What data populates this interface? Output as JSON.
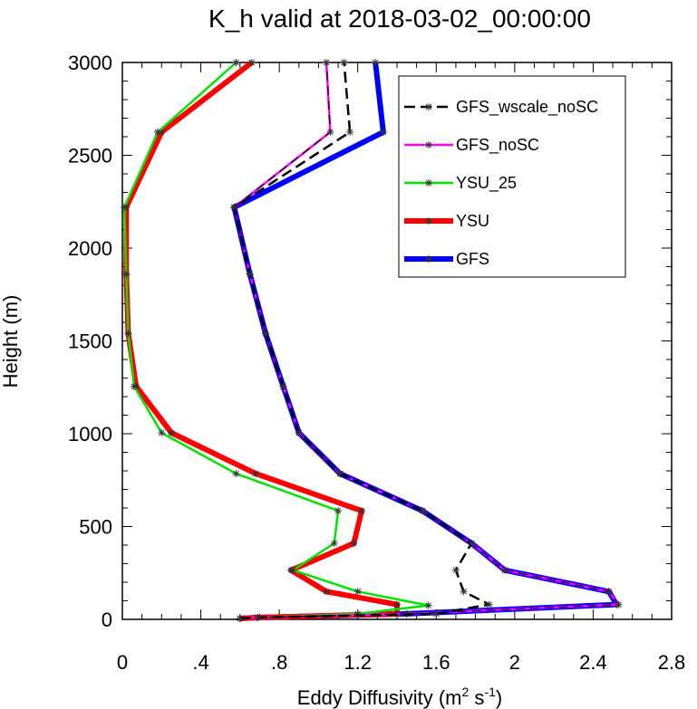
{
  "chart_data": {
    "type": "line",
    "title": "K_h valid at 2018-03-02_00:00:00",
    "xlabel": {
      "text": "Eddy Diffusivity (m",
      "sup1": "2",
      "mid": " s",
      "sup2": "-1",
      "end": ")"
    },
    "ylabel": "Height (m)",
    "xlim": [
      0,
      2.8
    ],
    "ylim": [
      0,
      3000
    ],
    "x_ticks": [
      0,
      0.4,
      0.8,
      1.2,
      1.6,
      2.0,
      2.4,
      2.8
    ],
    "x_tick_labels": [
      "0",
      ".4",
      ".8",
      "1.2",
      "1.6",
      "2",
      "2.4",
      "2.8"
    ],
    "y_ticks": [
      0,
      500,
      1000,
      1500,
      2000,
      2500,
      3000
    ],
    "y_tick_labels": [
      "0",
      "500",
      "1000",
      "1500",
      "2000",
      "2500",
      "3000"
    ],
    "legend_position": "top-right",
    "series": [
      {
        "name": "GFS_wscale_noSC",
        "color": "#000000",
        "width": 2.5,
        "dash": "12,6",
        "points": [
          [
            0.6,
            5
          ],
          [
            0.69,
            10
          ],
          [
            1.6,
            30
          ],
          [
            1.87,
            80
          ],
          [
            1.74,
            150
          ],
          [
            1.7,
            265
          ],
          [
            1.78,
            410
          ],
          [
            1.53,
            585
          ],
          [
            1.11,
            785
          ],
          [
            0.9,
            1005
          ],
          [
            0.82,
            1255
          ],
          [
            0.73,
            1540
          ],
          [
            0.65,
            1860
          ],
          [
            0.57,
            2220
          ],
          [
            1.16,
            2625
          ],
          [
            1.13,
            3000
          ]
        ]
      },
      {
        "name": "GFS_noSC",
        "color": "#ff00ff",
        "width": 2.5,
        "dash": "",
        "points": [
          [
            0.6,
            5
          ],
          [
            0.69,
            10
          ],
          [
            1.45,
            30
          ],
          [
            2.53,
            80
          ],
          [
            2.48,
            150
          ],
          [
            1.95,
            265
          ],
          [
            1.78,
            410
          ],
          [
            1.53,
            585
          ],
          [
            1.11,
            785
          ],
          [
            0.9,
            1005
          ],
          [
            0.82,
            1255
          ],
          [
            0.73,
            1540
          ],
          [
            0.65,
            1860
          ],
          [
            0.57,
            2220
          ],
          [
            1.06,
            2625
          ],
          [
            1.04,
            3000
          ]
        ]
      },
      {
        "name": "YSU_25",
        "color": "#00e600",
        "width": 2.5,
        "dash": "",
        "points": [
          [
            0.6,
            5
          ],
          [
            0.69,
            10
          ],
          [
            1.2,
            30
          ],
          [
            1.56,
            75
          ],
          [
            1.2,
            150
          ],
          [
            0.87,
            265
          ],
          [
            1.08,
            410
          ],
          [
            1.1,
            585
          ],
          [
            0.58,
            785
          ],
          [
            0.2,
            1005
          ],
          [
            0.06,
            1255
          ],
          [
            0.03,
            1540
          ],
          [
            0.02,
            1860
          ],
          [
            0.01,
            2220
          ],
          [
            0.18,
            2625
          ],
          [
            0.58,
            3000
          ]
        ]
      },
      {
        "name": "YSU",
        "color": "#ff0000",
        "width": 6,
        "dash": "",
        "points": [
          [
            0.6,
            5
          ],
          [
            0.69,
            10
          ],
          [
            1.4,
            30
          ],
          [
            1.4,
            80
          ],
          [
            1.04,
            150
          ],
          [
            0.86,
            265
          ],
          [
            1.18,
            410
          ],
          [
            1.22,
            585
          ],
          [
            0.68,
            785
          ],
          [
            0.25,
            1005
          ],
          [
            0.07,
            1255
          ],
          [
            0.03,
            1540
          ],
          [
            0.02,
            1860
          ],
          [
            0.02,
            2220
          ],
          [
            0.2,
            2625
          ],
          [
            0.66,
            3000
          ]
        ]
      },
      {
        "name": "GFS",
        "color": "#0000ff",
        "width": 6,
        "dash": "",
        "points": [
          [
            0.6,
            5
          ],
          [
            0.69,
            10
          ],
          [
            1.45,
            30
          ],
          [
            2.52,
            80
          ],
          [
            2.48,
            150
          ],
          [
            1.95,
            265
          ],
          [
            1.78,
            410
          ],
          [
            1.53,
            585
          ],
          [
            1.11,
            785
          ],
          [
            0.9,
            1005
          ],
          [
            0.82,
            1255
          ],
          [
            0.73,
            1540
          ],
          [
            0.65,
            1860
          ],
          [
            0.57,
            2220
          ],
          [
            1.33,
            2625
          ],
          [
            1.29,
            3000
          ]
        ]
      }
    ],
    "overlay_dashed": {
      "series": "GFS_noSC",
      "color": "#000000",
      "dash": "10,6"
    }
  }
}
